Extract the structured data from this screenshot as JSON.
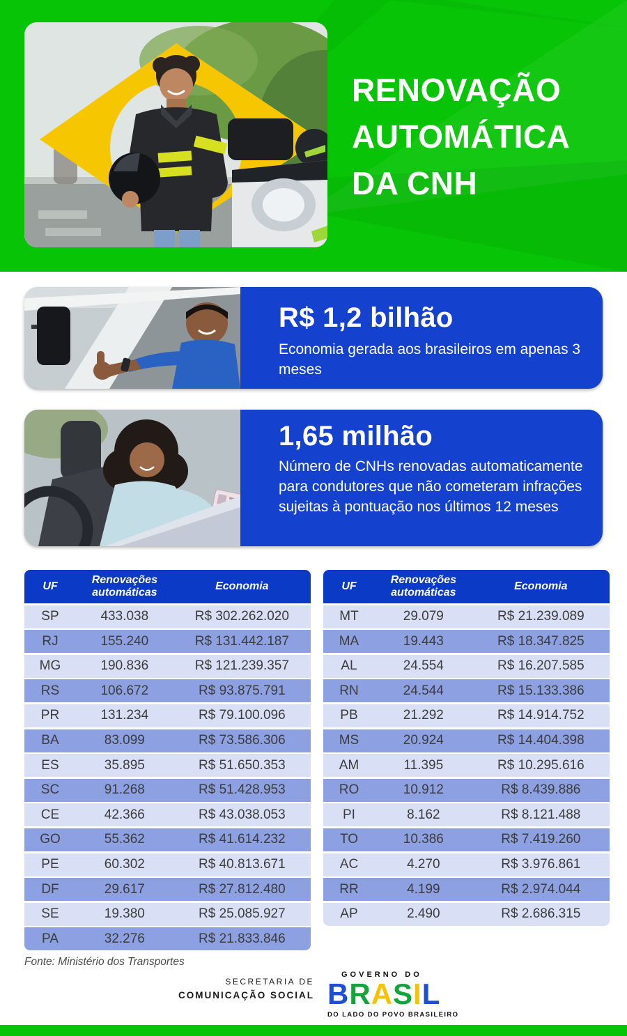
{
  "header": {
    "title_lines": [
      "RENOVAÇÃO",
      "AUTOMÁTICA",
      "DA CNH"
    ],
    "bg_color": "#07c407"
  },
  "cards": [
    {
      "value": "R$ 1,2 bilhão",
      "description": "Economia gerada aos brasileiros em apenas 3 meses"
    },
    {
      "value": "1,65 milhão",
      "description": "Número de CNHs renovadas automaticamente para condutores que não cometeram infrações sujeitas à pontuação nos últimos 12 meses"
    }
  ],
  "tables": {
    "headers": [
      "UF",
      "Renovações automáticas",
      "Economia"
    ],
    "left": {
      "rows": [
        [
          "SP",
          "433.038",
          "R$ 302.262.020"
        ],
        [
          "RJ",
          "155.240",
          "R$ 131.442.187"
        ],
        [
          "MG",
          "190.836",
          "R$ 121.239.357"
        ],
        [
          "RS",
          "106.672",
          "R$ 93.875.791"
        ],
        [
          "PR",
          "131.234",
          "R$ 79.100.096"
        ],
        [
          "BA",
          "83.099",
          "R$ 73.586.306"
        ],
        [
          "ES",
          "35.895",
          "R$ 51.650.353"
        ],
        [
          "SC",
          "91.268",
          "R$ 51.428.953"
        ],
        [
          "CE",
          "42.366",
          "R$ 43.038.053"
        ],
        [
          "GO",
          "55.362",
          "R$ 41.614.232"
        ],
        [
          "PE",
          "60.302",
          "R$ 40.813.671"
        ],
        [
          "DF",
          "29.617",
          "R$ 27.812.480"
        ],
        [
          "SE",
          "19.380",
          "R$ 25.085.927"
        ],
        [
          "PA",
          "32.276",
          "R$ 21.833.846"
        ]
      ]
    },
    "right": {
      "rows": [
        [
          "MT",
          "29.079",
          "R$ 21.239.089"
        ],
        [
          "MA",
          "19.443",
          "R$ 18.347.825"
        ],
        [
          "AL",
          "24.554",
          "R$ 16.207.585"
        ],
        [
          "RN",
          "24.544",
          "R$ 15.133.386"
        ],
        [
          "PB",
          "21.292",
          "R$ 14.914.752"
        ],
        [
          "MS",
          "20.924",
          "R$ 14.404.398"
        ],
        [
          "AM",
          "11.395",
          "R$ 10.295.616"
        ],
        [
          "RO",
          "10.912",
          "R$ 8.439.886"
        ],
        [
          "PI",
          "8.162",
          "R$ 8.121.488"
        ],
        [
          "TO",
          "10.386",
          "R$ 7.419.260"
        ],
        [
          "AC",
          "4.270",
          "R$ 3.976.861"
        ],
        [
          "RR",
          "4.199",
          "R$ 2.974.044"
        ],
        [
          "AP",
          "2.490",
          "R$ 2.686.315"
        ]
      ]
    }
  },
  "footer": {
    "source": "Fonte: Ministério dos Transportes",
    "secretaria_line1": "SECRETARIA DE",
    "secretaria_line2": "COMUNICAÇÃO SOCIAL",
    "gov_top": "GOVERNO DO",
    "gov_brand": "BRASIL",
    "gov_brand_colors": [
      "#1e4fd3",
      "#15a33b",
      "#f5c400",
      "#15a33b",
      "#f5c400",
      "#1e4fd3"
    ],
    "gov_bottom": "DO LADO DO POVO BRASILEIRO"
  },
  "colors": {
    "green": "#07c407",
    "card_blue": "#1441cd",
    "table_header_blue": "#0b3ac6",
    "row_light": "#d9e0f6",
    "row_dark": "#8ca0e2",
    "flag_yellow": "#f6c700",
    "text_dark": "#3c3c3c"
  }
}
